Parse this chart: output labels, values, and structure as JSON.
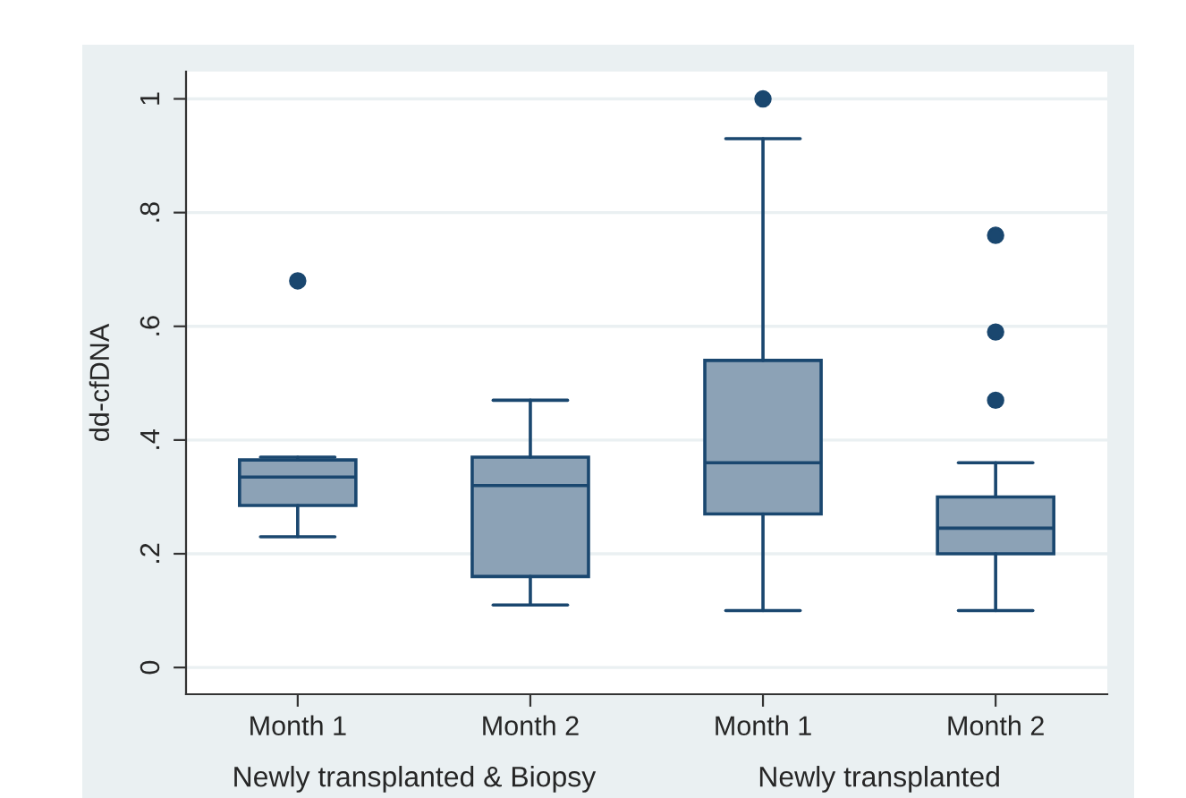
{
  "chart_data": {
    "type": "box",
    "ylabel": "dd-cfDNA",
    "categories": [
      "Month 1",
      "Month 2",
      "Month 1",
      "Month 2"
    ],
    "series": [
      {
        "color": "#8ca2b6",
        "boxes": [
          {
            "low": 0.23,
            "q1": 0.285,
            "median": 0.335,
            "q3": 0.365,
            "high": 0.37,
            "outliers": [
              0.68
            ]
          },
          {
            "low": 0.11,
            "q1": 0.16,
            "median": 0.32,
            "q3": 0.37,
            "high": 0.47
          },
          {
            "low": 0.1,
            "q1": 0.27,
            "median": 0.36,
            "q3": 0.54,
            "high": 0.93,
            "outliers": [
              1.0
            ]
          },
          {
            "low": 0.1,
            "q1": 0.2,
            "median": 0.245,
            "q3": 0.3,
            "high": 0.36,
            "outliers": [
              0.76,
              0.59,
              0.47
            ]
          }
        ]
      }
    ],
    "ylim": [
      -0.047,
      1.048
    ],
    "yticks": [
      0,
      {
        "value": 0.2,
        "label": ".2"
      },
      {
        "value": 0.4,
        "label": ".4"
      },
      {
        "value": 0.6,
        "label": ".6"
      },
      {
        "value": 0.8,
        "label": ".8"
      },
      1
    ],
    "grid": "y",
    "marker": "circle",
    "legend": false,
    "annotations": [
      "Newly transplanted & Biopsy",
      "Newly transplanted"
    ]
  }
}
